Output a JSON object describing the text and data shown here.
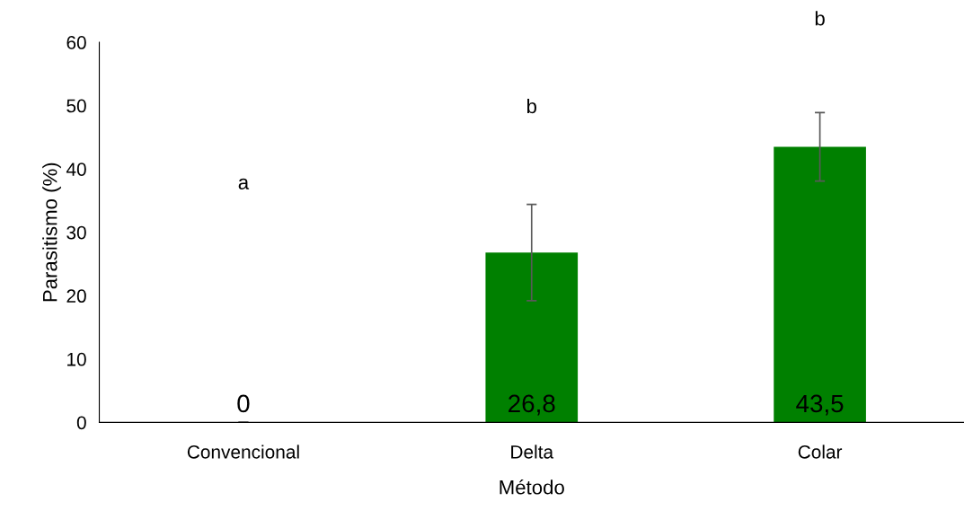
{
  "chart_data": {
    "type": "bar",
    "xlabel": "Método",
    "ylabel": "Parasitismo (%)",
    "categories": [
      "Convencional",
      "Delta",
      "Colar"
    ],
    "values": [
      0,
      26.8,
      43.5
    ],
    "color": "#008000",
    "errors": [
      0,
      7.6,
      5.4
    ],
    "value_labels": [
      "0",
      "26,8",
      "43,5"
    ],
    "ylim": [
      0,
      60
    ],
    "yticks": [
      0,
      10,
      20,
      30,
      40,
      50,
      60
    ],
    "grid": false,
    "legend": false,
    "annotations": [
      "a",
      "b",
      "b"
    ]
  }
}
